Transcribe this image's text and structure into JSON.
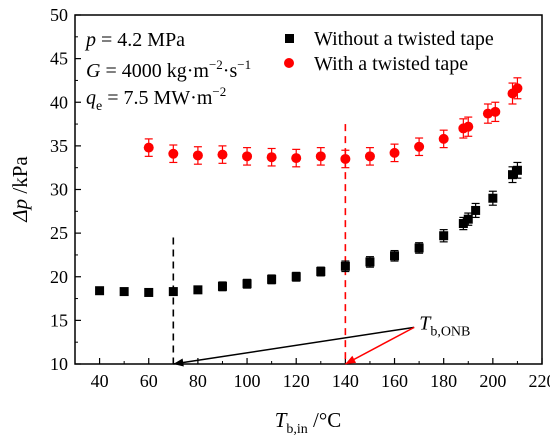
{
  "chart_data": {
    "type": "scatter",
    "xlim": [
      30,
      220
    ],
    "ylim": [
      10,
      50
    ],
    "xticks": [
      40,
      60,
      80,
      100,
      120,
      140,
      160,
      180,
      200,
      220
    ],
    "yticks": [
      10,
      15,
      20,
      25,
      30,
      35,
      40,
      45,
      50
    ],
    "xlabel": {
      "main": "T",
      "sub": "b,in",
      "unit": " /°C"
    },
    "ylabel": {
      "main": "Δp",
      "unit": " /kPa"
    },
    "conditions": [
      {
        "pre": "p",
        "text": " = 4.2 MPa"
      },
      {
        "pre": "G",
        "text": " = 4000 kg·m",
        "sup1": "−2",
        "mid": "·s",
        "sup2": "−1"
      },
      {
        "pre": "q",
        "sub": "e",
        "text": " = 7.5 MW·m",
        "sup1": "−2"
      }
    ],
    "legend_position": "top-right",
    "series": [
      {
        "name": "Without a twisted tape",
        "color": "#000000",
        "marker": "square",
        "x": [
          40,
          50,
          60,
          70,
          80,
          90,
          100,
          110,
          120,
          130,
          140,
          150,
          160,
          170,
          180,
          188,
          190,
          193,
          200,
          208,
          210
        ],
        "y": [
          18.4,
          18.3,
          18.2,
          18.3,
          18.5,
          18.9,
          19.2,
          19.7,
          20.0,
          20.6,
          21.2,
          21.7,
          22.4,
          23.3,
          24.7,
          26.1,
          26.6,
          27.6,
          29.0,
          31.7,
          32.2
        ],
        "err": [
          0.4,
          0.4,
          0.4,
          0.4,
          0.4,
          0.5,
          0.5,
          0.5,
          0.5,
          0.5,
          0.6,
          0.6,
          0.6,
          0.6,
          0.7,
          0.7,
          0.7,
          0.8,
          0.8,
          0.9,
          0.9
        ]
      },
      {
        "name": "With a twisted tape",
        "color": "#ff0000",
        "marker": "circle",
        "x": [
          60,
          70,
          80,
          90,
          100,
          110,
          120,
          130,
          140,
          150,
          160,
          170,
          180,
          188,
          190,
          198,
          201,
          208,
          210
        ],
        "y": [
          34.8,
          34.1,
          33.9,
          34.0,
          33.8,
          33.7,
          33.6,
          33.8,
          33.5,
          33.8,
          34.2,
          34.9,
          35.8,
          37.0,
          37.2,
          38.7,
          38.9,
          41.0,
          41.6
        ],
        "err": [
          1.0,
          1.0,
          1.0,
          1.0,
          1.0,
          1.0,
          1.0,
          1.0,
          1.0,
          1.0,
          1.0,
          1.0,
          1.0,
          1.1,
          1.1,
          1.1,
          1.1,
          1.2,
          1.2
        ]
      }
    ],
    "annotation": {
      "label_main": "T",
      "label_sub": "b,ONB",
      "label_anchor": [
        168,
        14.2
      ],
      "onb_lines": [
        {
          "series": "Without a twisted tape",
          "x": 70,
          "y_top": 24.5,
          "color": "#000000",
          "arrow_to": [
            70,
            10
          ]
        },
        {
          "series": "With a twisted tape",
          "x": 140,
          "y_top": 37.5,
          "color": "#ff0000",
          "arrow_to": [
            140,
            10
          ]
        }
      ]
    }
  }
}
